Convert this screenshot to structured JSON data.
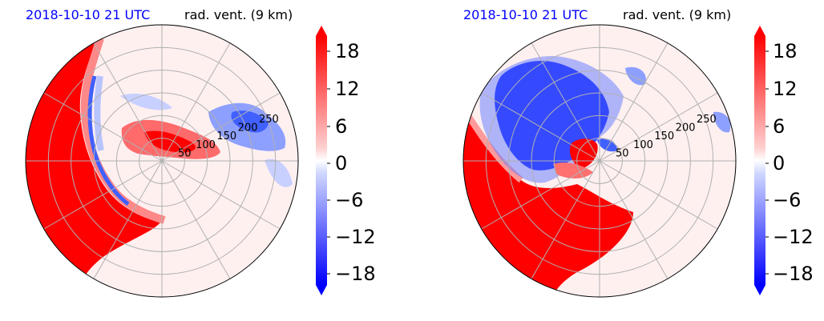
{
  "panels": [
    {
      "title_left": "2018-10-10 21 UTC",
      "title_right": "rad. vent. (9 km)"
    },
    {
      "title_left": "2018-10-10 21 UTC",
      "title_right": "rad. vent. (9 km)"
    }
  ],
  "colors": {
    "title_left": "#0000ff",
    "positive": "#ff0000",
    "negative": "#0000ff",
    "grid": "#b0b0b0"
  },
  "chart_data": [
    {
      "type": "heatmap",
      "projection": "polar",
      "title": "rad. vent. (9 km)",
      "radial_ticks": [
        50,
        100,
        150,
        200,
        250
      ],
      "radial_max": 300,
      "azimuth_grid_deg": [
        0,
        30,
        60,
        90,
        120,
        150,
        180,
        210,
        240,
        270,
        300,
        330
      ],
      "colorbar": {
        "ticks": [
          18,
          12,
          6,
          0,
          -6,
          -12,
          -18
        ],
        "tick_labels": [
          "18",
          "12",
          "6",
          "0",
          "−6",
          "−12",
          "−18"
        ],
        "range": [
          -20,
          20
        ],
        "extend": "both"
      },
      "regions": [
        {
          "desc": "outer west-southwest ring",
          "value": 20
        },
        {
          "desc": "inner band near center east",
          "value": 16
        },
        {
          "desc": "northwest band edge",
          "value": -12
        },
        {
          "desc": "northeast patch",
          "value": -10
        }
      ]
    },
    {
      "type": "heatmap",
      "projection": "polar",
      "title": "rad. vent. (9 km)",
      "radial_ticks": [
        50,
        100,
        150,
        200,
        250
      ],
      "radial_max": 300,
      "azimuth_grid_deg": [
        0,
        30,
        60,
        90,
        120,
        150,
        180,
        210,
        240,
        270,
        300,
        330
      ],
      "colorbar": {
        "ticks": [
          18,
          12,
          6,
          0,
          -6,
          -12,
          -18
        ],
        "tick_labels": [
          "18",
          "12",
          "6",
          "0",
          "−6",
          "−12",
          "−18"
        ],
        "range": [
          -20,
          20
        ],
        "extend": "both"
      },
      "regions": [
        {
          "desc": "southwest outer region",
          "value": 20
        },
        {
          "desc": "northwest region",
          "value": -20
        },
        {
          "desc": "center east blob",
          "value": 18
        }
      ]
    }
  ]
}
